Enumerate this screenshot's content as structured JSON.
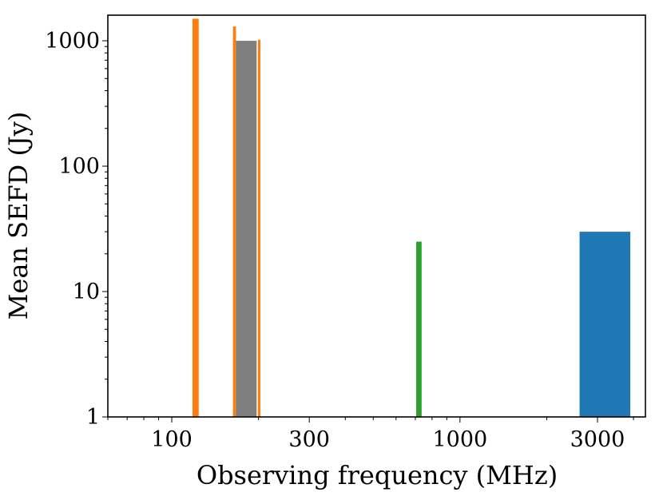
{
  "chart_data": {
    "type": "bar",
    "title": "",
    "xlabel": "Observing frequency (MHz)",
    "ylabel": "Mean SEFD (Jy)",
    "x_scale": "log",
    "y_scale": "log",
    "xlim": [
      60,
      4400
    ],
    "ylim": [
      1,
      1600
    ],
    "x_ticks": [
      {
        "value": 100,
        "label": "100"
      },
      {
        "value": 300,
        "label": "300"
      },
      {
        "value": 1000,
        "label": "1000"
      },
      {
        "value": 3000,
        "label": "3000"
      }
    ],
    "y_ticks": [
      {
        "value": 1,
        "label": "1"
      },
      {
        "value": 10,
        "label": "10"
      },
      {
        "value": 100,
        "label": "100"
      },
      {
        "value": 1000,
        "label": "1000"
      }
    ],
    "grid": false,
    "legend": "none",
    "bars": [
      {
        "name": "orange-bar-1",
        "x_low": 118,
        "x_high": 124,
        "value": 1500,
        "color": "#ff7f0e"
      },
      {
        "name": "orange-bar-2",
        "x_low": 163,
        "x_high": 167,
        "value": 1300,
        "color": "#ff7f0e"
      },
      {
        "name": "gray-bar",
        "x_low": 167,
        "x_high": 197,
        "value": 1000,
        "color": "#7f7f7f"
      },
      {
        "name": "orange-bar-3",
        "x_low": 199,
        "x_high": 203,
        "value": 1020,
        "color": "#ff7f0e"
      },
      {
        "name": "green-bar",
        "x_low": 705,
        "x_high": 736,
        "value": 25,
        "color": "#2ca02c"
      },
      {
        "name": "blue-bar",
        "x_low": 2600,
        "x_high": 3900,
        "value": 30,
        "color": "#1f77b4"
      }
    ]
  }
}
